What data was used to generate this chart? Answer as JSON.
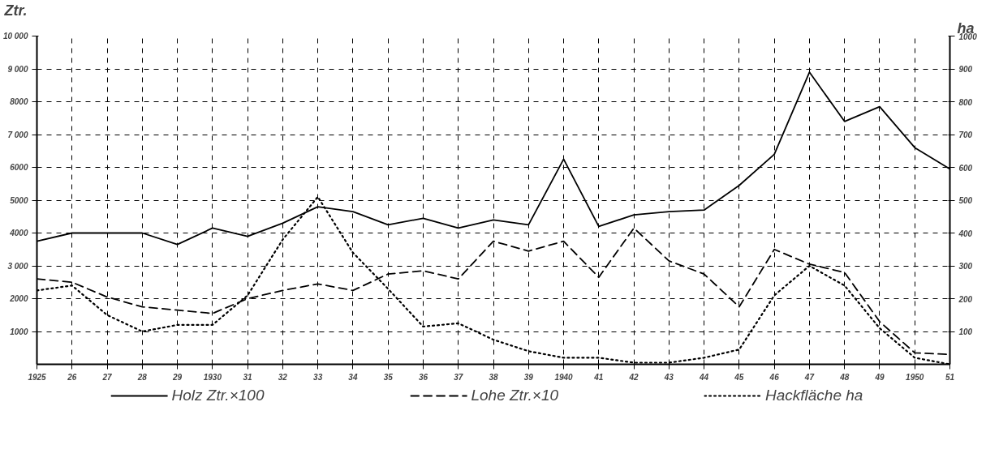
{
  "chart_data": {
    "type": "line",
    "ylabel": "Ztr.",
    "y2label": "ha",
    "x": [
      1925,
      1926,
      1927,
      1928,
      1929,
      1930,
      1931,
      1932,
      1933,
      1934,
      1935,
      1936,
      1937,
      1938,
      1939,
      1940,
      1941,
      1942,
      1943,
      1944,
      1945,
      1946,
      1947,
      1948,
      1949,
      1950,
      1951
    ],
    "series": [
      {
        "name": "Holz Ztr.×100",
        "color": "#000000",
        "line_style": "solid",
        "values": [
          3750,
          4000,
          4000,
          4000,
          3650,
          4150,
          3900,
          4300,
          4800,
          4650,
          4250,
          4450,
          4150,
          4400,
          4250,
          6250,
          4200,
          4550,
          4650,
          4700,
          5450,
          6400,
          8900,
          7400,
          7850,
          6600,
          5950
        ]
      },
      {
        "name": "Lohe Ztr.×10",
        "color": "#000000",
        "line_style": "dashed",
        "values": [
          2600,
          2500,
          2050,
          1750,
          1650,
          1550,
          2000,
          2250,
          2450,
          2250,
          2750,
          2850,
          2600,
          3750,
          3450,
          3750,
          2650,
          4150,
          3150,
          2750,
          1750,
          3500,
          3050,
          2800,
          1300,
          350,
          300
        ]
      },
      {
        "name": "Hackfläche ha",
        "color": "#000000",
        "line_style": "dotted",
        "axis": "y2",
        "values": [
          225,
          240,
          150,
          100,
          120,
          120,
          210,
          380,
          510,
          340,
          230,
          115,
          125,
          75,
          40,
          20,
          20,
          5,
          5,
          20,
          45,
          210,
          300,
          240,
          110,
          20,
          0
        ]
      }
    ],
    "xlim": [
      1925,
      1951
    ],
    "xticks": [
      {
        "value": 1925,
        "label": "1925"
      },
      {
        "value": 1926,
        "label": "26"
      },
      {
        "value": 1927,
        "label": "27"
      },
      {
        "value": 1928,
        "label": "28"
      },
      {
        "value": 1929,
        "label": "29"
      },
      {
        "value": 1930,
        "label": "1930"
      },
      {
        "value": 1931,
        "label": "31"
      },
      {
        "value": 1932,
        "label": "32"
      },
      {
        "value": 1933,
        "label": "33"
      },
      {
        "value": 1934,
        "label": "34"
      },
      {
        "value": 1935,
        "label": "35"
      },
      {
        "value": 1936,
        "label": "36"
      },
      {
        "value": 1937,
        "label": "37"
      },
      {
        "value": 1938,
        "label": "38"
      },
      {
        "value": 1939,
        "label": "39"
      },
      {
        "value": 1940,
        "label": "1940"
      },
      {
        "value": 1941,
        "label": "41"
      },
      {
        "value": 1942,
        "label": "42"
      },
      {
        "value": 1943,
        "label": "43"
      },
      {
        "value": 1944,
        "label": "44"
      },
      {
        "value": 1945,
        "label": "45"
      },
      {
        "value": 1946,
        "label": "46"
      },
      {
        "value": 1947,
        "label": "47"
      },
      {
        "value": 1948,
        "label": "48"
      },
      {
        "value": 1949,
        "label": "49"
      },
      {
        "value": 1950,
        "label": "1950"
      },
      {
        "value": 1951,
        "label": "51"
      }
    ],
    "ylim": [
      0,
      10000
    ],
    "yticks": [
      1000,
      2000,
      {
        "value": 3000,
        "label": "3 000"
      },
      4000,
      5000,
      6000,
      {
        "value": 7000,
        "label": "7 000"
      },
      8000,
      {
        "value": 9000,
        "label": "9 000"
      },
      {
        "value": 10000,
        "label": "10 000"
      }
    ],
    "y2lim": [
      0,
      1000
    ],
    "y2ticks": [
      100,
      200,
      300,
      400,
      500,
      600,
      700,
      800,
      900,
      1000
    ],
    "grid": true,
    "legend": "bottom",
    "marker": "none"
  }
}
